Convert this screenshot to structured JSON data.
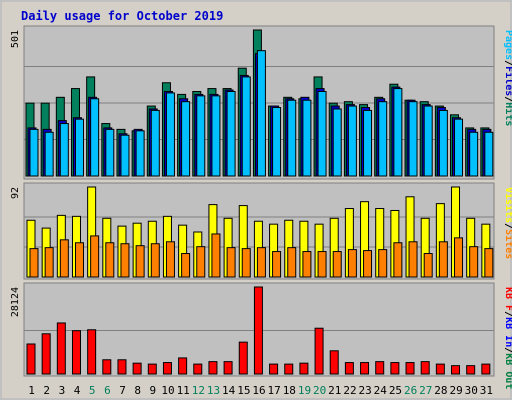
{
  "title": "Daily usage for October 2019",
  "colors": {
    "title": "#0000cc",
    "panel_bg": "#c0c0c0",
    "hits": "#00805c",
    "files": "#0000cc",
    "pages": "#00c0ff",
    "visits": "#ffff00",
    "sites": "#ff8000",
    "kbf": "#ff0000",
    "kbin": "#0000ff",
    "kbout": "#008040",
    "day_weekday": "#000000",
    "day_weekend": "#00805c"
  },
  "chart_data": [
    {
      "type": "bar",
      "panel": "hits-files-pages",
      "ymax_label": "501",
      "ylim": [
        0,
        501
      ],
      "legend": [
        "Pages",
        "/",
        "Files",
        "/",
        "Hits"
      ],
      "x": [
        1,
        2,
        3,
        4,
        5,
        6,
        7,
        8,
        9,
        10,
        11,
        12,
        13,
        14,
        15,
        16,
        17,
        18,
        19,
        20,
        21,
        22,
        23,
        24,
        25,
        26,
        27,
        28,
        29,
        30,
        31
      ],
      "series": [
        {
          "name": "Hits",
          "values": [
            250,
            250,
            270,
            300,
            340,
            180,
            160,
            155,
            240,
            320,
            280,
            290,
            300,
            300,
            370,
            501,
            240,
            270,
            265,
            340,
            250,
            255,
            245,
            270,
            315,
            260,
            255,
            240,
            210,
            165,
            165
          ]
        },
        {
          "name": "Files",
          "values": [
            165,
            160,
            190,
            200,
            270,
            165,
            145,
            160,
            230,
            290,
            265,
            280,
            280,
            295,
            345,
            420,
            240,
            265,
            270,
            300,
            240,
            245,
            235,
            265,
            305,
            260,
            245,
            235,
            200,
            160,
            160
          ]
        },
        {
          "name": "Pages",
          "values": [
            160,
            150,
            180,
            195,
            265,
            160,
            140,
            155,
            225,
            285,
            255,
            275,
            275,
            290,
            340,
            430,
            235,
            260,
            260,
            290,
            230,
            240,
            225,
            255,
            300,
            255,
            240,
            225,
            195,
            150,
            150
          ]
        }
      ]
    },
    {
      "type": "bar",
      "panel": "visits-sites",
      "ymax_label": "92",
      "ylim": [
        0,
        92
      ],
      "legend": [
        "Visits",
        "/",
        "Sites"
      ],
      "x": [
        1,
        2,
        3,
        4,
        5,
        6,
        7,
        8,
        9,
        10,
        11,
        12,
        13,
        14,
        15,
        16,
        17,
        18,
        19,
        20,
        21,
        22,
        23,
        24,
        25,
        26,
        27,
        28,
        29,
        30,
        31
      ],
      "series": [
        {
          "name": "Visits",
          "values": [
            58,
            50,
            63,
            62,
            92,
            60,
            52,
            55,
            57,
            62,
            53,
            46,
            74,
            60,
            73,
            57,
            54,
            58,
            57,
            54,
            60,
            70,
            77,
            70,
            68,
            82,
            60,
            75,
            92,
            60,
            54
          ]
        },
        {
          "name": "Sites",
          "values": [
            29,
            30,
            38,
            35,
            42,
            35,
            34,
            32,
            34,
            36,
            24,
            31,
            44,
            30,
            29,
            30,
            26,
            30,
            26,
            26,
            26,
            28,
            27,
            28,
            35,
            36,
            24,
            36,
            40,
            31,
            29
          ]
        }
      ]
    },
    {
      "type": "bar",
      "panel": "kbytes",
      "ymax_label": "28124",
      "ylim": [
        0,
        28124
      ],
      "legend": [
        "KB F",
        "/",
        "KB In",
        "/",
        "KB Out"
      ],
      "x": [
        1,
        2,
        3,
        4,
        5,
        6,
        7,
        8,
        9,
        10,
        11,
        12,
        13,
        14,
        15,
        16,
        17,
        18,
        19,
        20,
        21,
        22,
        23,
        24,
        25,
        26,
        27,
        28,
        29,
        30,
        31
      ],
      "series": [
        {
          "name": "KB F",
          "values": [
            9700,
            13000,
            16500,
            14000,
            14300,
            4600,
            4600,
            3500,
            3200,
            3700,
            5200,
            3200,
            4000,
            4000,
            10300,
            28124,
            3200,
            3200,
            3500,
            14800,
            7500,
            3700,
            3700,
            4000,
            3700,
            3700,
            4000,
            3200,
            2700,
            2700,
            3200
          ]
        }
      ]
    }
  ],
  "day_labels": [
    "1",
    "2",
    "3",
    "4",
    "5",
    "6",
    "7",
    "8",
    "9",
    "10",
    "11",
    "12",
    "13",
    "14",
    "15",
    "16",
    "17",
    "18",
    "19",
    "20",
    "21",
    "22",
    "23",
    "24",
    "25",
    "26",
    "27",
    "28",
    "29",
    "30",
    "31"
  ],
  "weekend_days": [
    5,
    6,
    12,
    13,
    19,
    20,
    26,
    27
  ]
}
